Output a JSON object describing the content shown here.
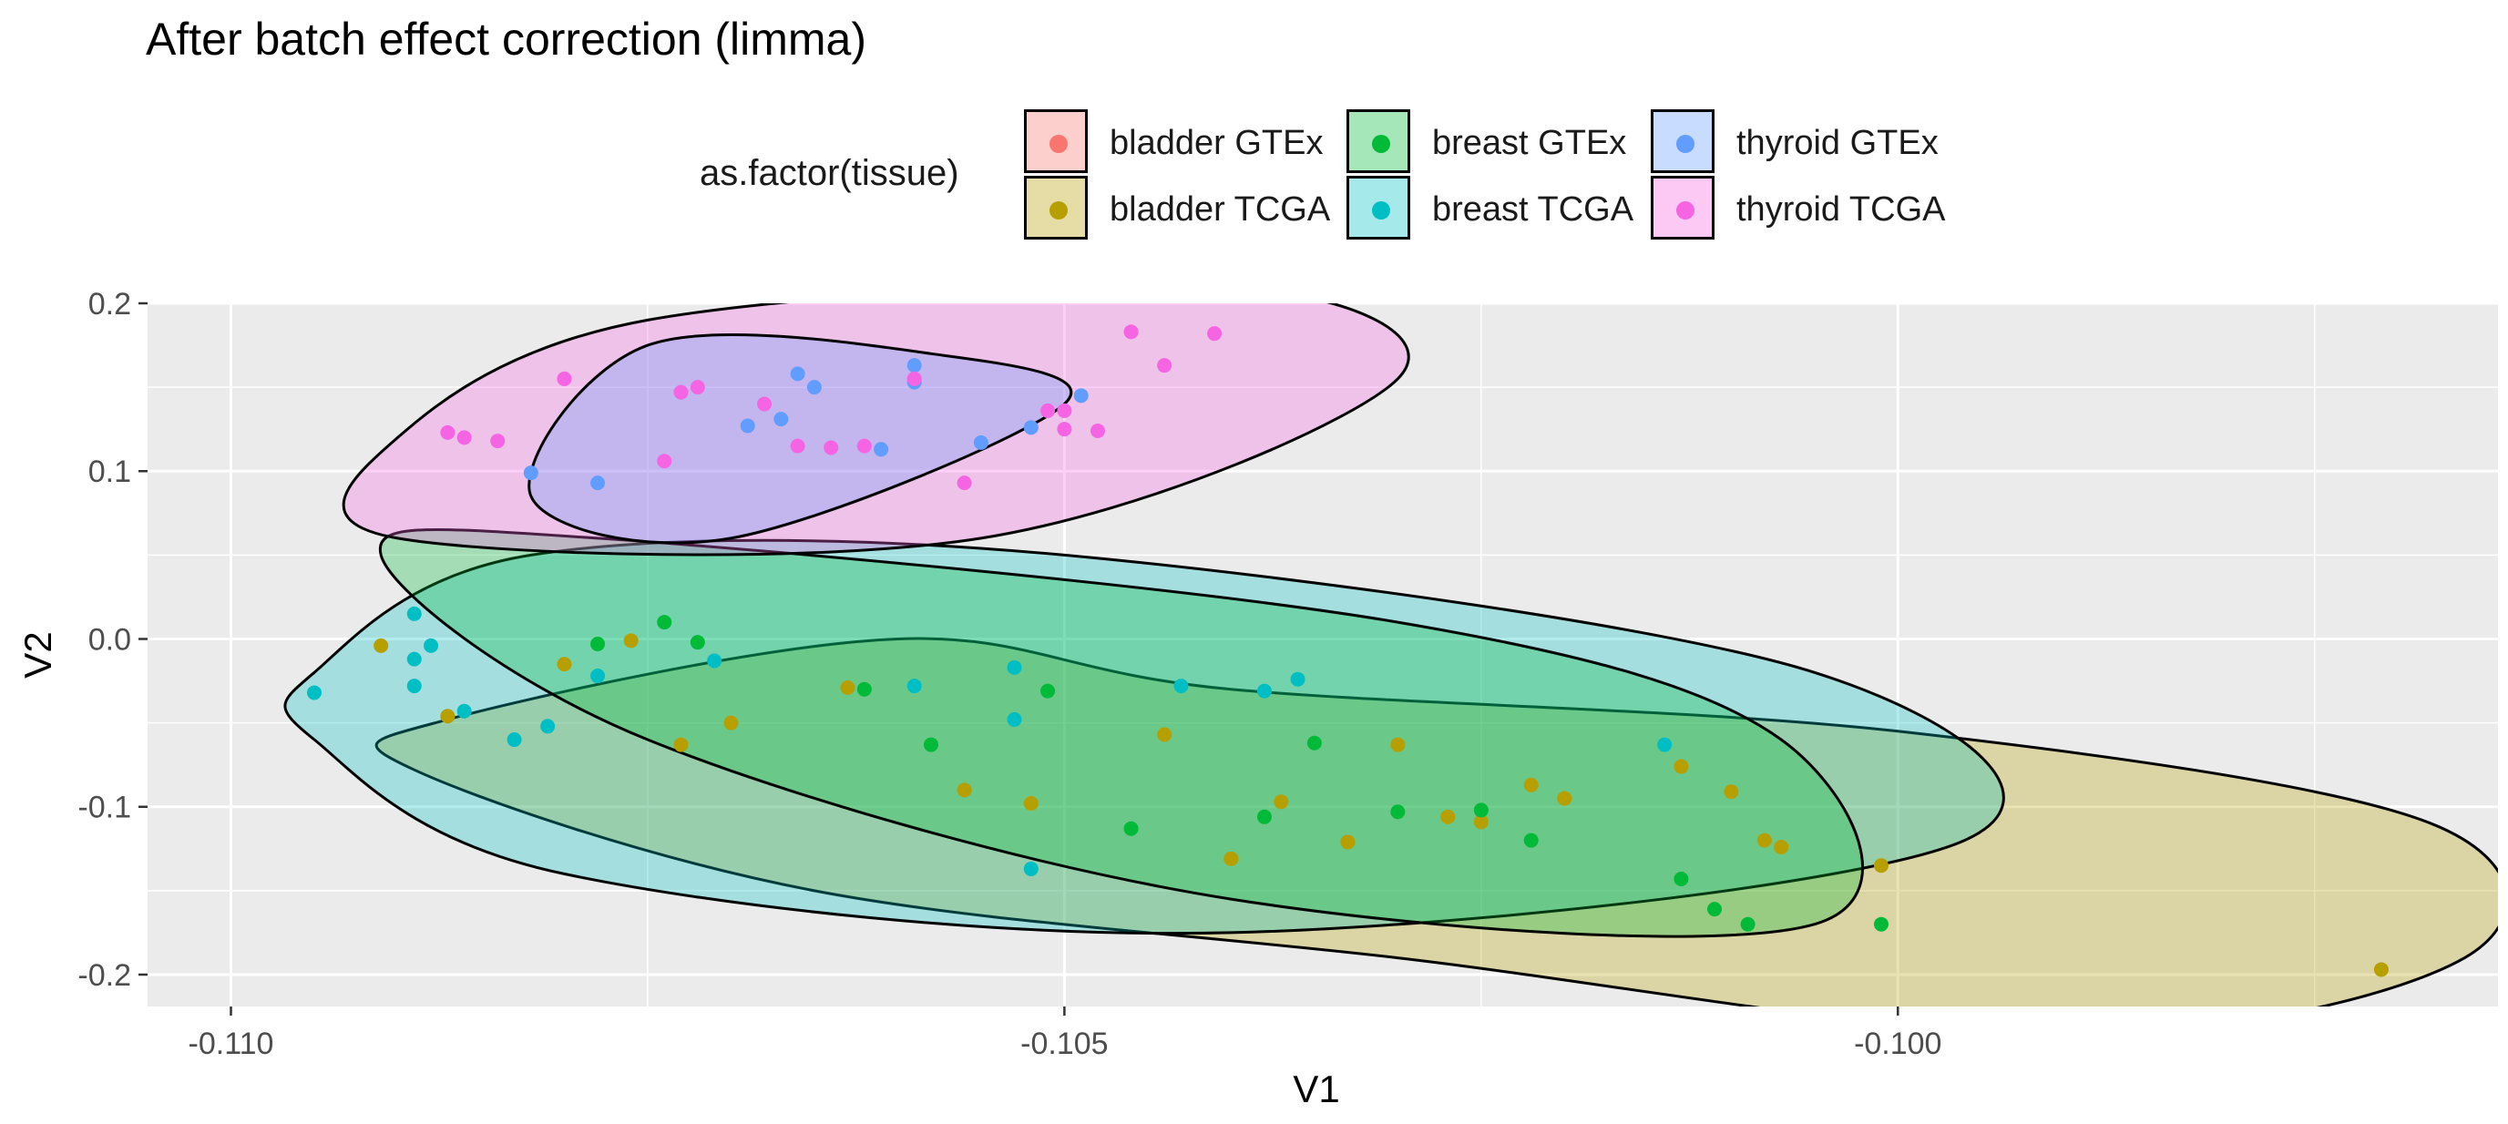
{
  "chart_data": {
    "type": "scatter",
    "title": "After batch effect correction (limma)",
    "xlabel": "V1",
    "ylabel": "V2",
    "xlim": [
      -0.1105,
      -0.0964
    ],
    "ylim": [
      -0.219,
      0.2
    ],
    "xticks": [
      -0.11,
      -0.105,
      -0.1
    ],
    "xtick_labels": [
      "-0.110",
      "-0.105",
      "-0.100"
    ],
    "yticks": [
      0.2,
      0.1,
      0.0,
      -0.1,
      -0.2
    ],
    "ytick_labels": [
      "0.2",
      "0.1",
      "0.0",
      "-0.1",
      "-0.2"
    ],
    "grid": true,
    "legend": {
      "title": "as.factor(tissue)",
      "position": "top",
      "entries": [
        "bladder GTEx",
        "bladder TCGA",
        "breast GTEx",
        "breast TCGA",
        "thyroid GTEx",
        "thyroid TCGA"
      ]
    },
    "series": [
      {
        "name": "bladder GTEx",
        "color": "#F8766D",
        "points": []
      },
      {
        "name": "bladder TCGA",
        "color": "#B79F00",
        "points": [
          [
            -0.1087,
            -0.046
          ],
          [
            -0.1073,
            -0.063
          ],
          [
            -0.1056,
            -0.09
          ],
          [
            -0.1052,
            -0.098
          ],
          [
            -0.1044,
            -0.057
          ],
          [
            -0.1037,
            -0.097
          ],
          [
            -0.1033,
            -0.121
          ],
          [
            -0.103,
            -0.063
          ],
          [
            -0.1027,
            -0.106
          ],
          [
            -0.1025,
            -0.109
          ],
          [
            -0.1022,
            -0.087
          ],
          [
            -0.102,
            -0.095
          ],
          [
            -0.1008,
            -0.12
          ],
          [
            -0.1007,
            -0.124
          ],
          [
            -0.1013,
            -0.076
          ],
          [
            -0.101,
            -0.091
          ],
          [
            -0.1001,
            -0.135
          ],
          [
            -0.0971,
            -0.197
          ],
          [
            -0.1091,
            -0.004
          ],
          [
            -0.108,
            -0.015
          ],
          [
            -0.1076,
            -0.001
          ],
          [
            -0.107,
            -0.05
          ],
          [
            -0.1063,
            -0.029
          ],
          [
            -0.104,
            -0.131
          ]
        ]
      },
      {
        "name": "breast GTEx",
        "color": "#00BA38",
        "points": [
          [
            -0.1078,
            -0.003
          ],
          [
            -0.1074,
            0.01
          ],
          [
            -0.1072,
            -0.002
          ],
          [
            -0.1062,
            -0.03
          ],
          [
            -0.1058,
            -0.063
          ],
          [
            -0.1051,
            -0.031
          ],
          [
            -0.1046,
            -0.113
          ],
          [
            -0.1038,
            -0.106
          ],
          [
            -0.1035,
            -0.062
          ],
          [
            -0.103,
            -0.103
          ],
          [
            -0.1025,
            -0.102
          ],
          [
            -0.1022,
            -0.12
          ],
          [
            -0.1013,
            -0.143
          ],
          [
            -0.1011,
            -0.161
          ],
          [
            -0.1001,
            -0.17
          ],
          [
            -0.1009,
            -0.17
          ]
        ]
      },
      {
        "name": "breast TCGA",
        "color": "#00BFC4",
        "points": [
          [
            -0.1095,
            -0.032
          ],
          [
            -0.1089,
            0.015
          ],
          [
            -0.1089,
            -0.012
          ],
          [
            -0.1088,
            -0.004
          ],
          [
            -0.1089,
            -0.028
          ],
          [
            -0.1086,
            -0.043
          ],
          [
            -0.1083,
            -0.06
          ],
          [
            -0.1081,
            -0.052
          ],
          [
            -0.1078,
            -0.022
          ],
          [
            -0.1053,
            -0.017
          ],
          [
            -0.1053,
            -0.048
          ],
          [
            -0.1052,
            -0.137
          ],
          [
            -0.1043,
            -0.028
          ],
          [
            -0.1038,
            -0.031
          ],
          [
            -0.1036,
            -0.024
          ],
          [
            -0.1014,
            -0.063
          ],
          [
            -0.1071,
            -0.013
          ],
          [
            -0.1059,
            -0.028
          ]
        ]
      },
      {
        "name": "thyroid GTEx",
        "color": "#619CFF",
        "points": [
          [
            -0.1082,
            0.099
          ],
          [
            -0.1078,
            0.093
          ],
          [
            -0.1073,
            0.147
          ],
          [
            -0.1069,
            0.127
          ],
          [
            -0.1067,
            0.131
          ],
          [
            -0.1066,
            0.158
          ],
          [
            -0.1065,
            0.15
          ],
          [
            -0.1061,
            0.113
          ],
          [
            -0.1059,
            0.153
          ],
          [
            -0.1059,
            0.163
          ],
          [
            -0.1055,
            0.117
          ],
          [
            -0.1052,
            0.126
          ],
          [
            -0.1049,
            0.145
          ]
        ]
      },
      {
        "name": "thyroid TCGA",
        "color": "#F564E3",
        "points": [
          [
            -0.1087,
            0.123
          ],
          [
            -0.1086,
            0.12
          ],
          [
            -0.1084,
            0.118
          ],
          [
            -0.108,
            0.155
          ],
          [
            -0.1074,
            0.106
          ],
          [
            -0.1073,
            0.147
          ],
          [
            -0.1072,
            0.15
          ],
          [
            -0.1068,
            0.14
          ],
          [
            -0.1066,
            0.115
          ],
          [
            -0.1064,
            0.114
          ],
          [
            -0.1062,
            0.115
          ],
          [
            -0.1059,
            0.155
          ],
          [
            -0.1056,
            0.093
          ],
          [
            -0.1051,
            0.136
          ],
          [
            -0.105,
            0.125
          ],
          [
            -0.1048,
            0.124
          ],
          [
            -0.1046,
            0.183
          ],
          [
            -0.1044,
            0.163
          ],
          [
            -0.1041,
            0.182
          ],
          [
            -0.105,
            0.136
          ]
        ]
      }
    ],
    "ellipses": [
      {
        "group": "bladder TCGA",
        "color": "#B79F00",
        "center": [
          -0.1022,
          -0.096
        ],
        "poly": [
          [
            -0.1087,
            -0.048
          ],
          [
            -0.106,
            0.0
          ],
          [
            -0.104,
            -0.03
          ],
          [
            -0.1,
            -0.055
          ],
          [
            -0.0968,
            -0.11
          ],
          [
            -0.0966,
            -0.19
          ],
          [
            -0.099,
            -0.236
          ],
          [
            -0.103,
            -0.19
          ],
          [
            -0.1065,
            -0.15
          ],
          [
            -0.1089,
            -0.078
          ]
        ]
      },
      {
        "group": "breast TCGA",
        "color": "#00BFC4",
        "center": [
          -0.1047,
          -0.063
        ],
        "poly": [
          [
            -0.1095,
            -0.02
          ],
          [
            -0.1082,
            0.05
          ],
          [
            -0.105,
            0.05
          ],
          [
            -0.1005,
            -0.02
          ],
          [
            -0.0996,
            -0.12
          ],
          [
            -0.104,
            -0.175
          ],
          [
            -0.108,
            -0.14
          ],
          [
            -0.1095,
            -0.06
          ]
        ]
      },
      {
        "group": "breast GTEx",
        "color": "#00BA38",
        "center": [
          -0.1056,
          -0.075
        ],
        "poly": [
          [
            -0.1091,
            0.05
          ],
          [
            -0.1078,
            0.06
          ],
          [
            -0.103,
            0.01
          ],
          [
            -0.1007,
            -0.06
          ],
          [
            -0.1005,
            -0.17
          ],
          [
            -0.104,
            -0.155
          ],
          [
            -0.1075,
            -0.06
          ]
        ]
      },
      {
        "group": "thyroid TCGA",
        "color": "#F564E3",
        "center": [
          -0.1063,
          0.142
        ],
        "poly": [
          [
            -0.109,
            0.12
          ],
          [
            -0.1075,
            0.19
          ],
          [
            -0.104,
            0.21
          ],
          [
            -0.103,
            0.155
          ],
          [
            -0.1055,
            0.06
          ],
          [
            -0.109,
            0.06
          ]
        ]
      },
      {
        "group": "thyroid GTEx",
        "color": "#619CFF",
        "center": [
          -0.1066,
          0.13
        ],
        "poly": [
          [
            -0.1082,
            0.085
          ],
          [
            -0.1075,
            0.175
          ],
          [
            -0.1058,
            0.17
          ],
          [
            -0.105,
            0.14
          ],
          [
            -0.107,
            0.06
          ]
        ]
      }
    ]
  }
}
